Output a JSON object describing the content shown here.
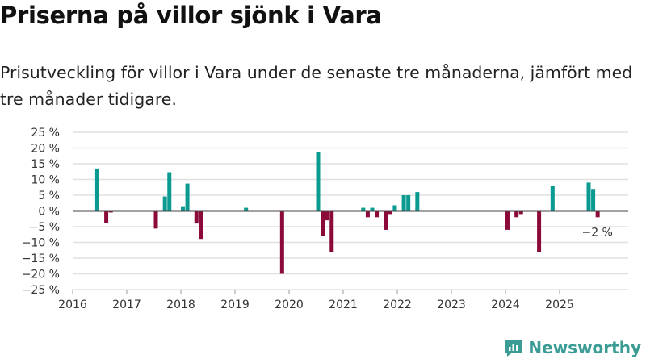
{
  "title": "Priserna på villor sjönk i Vara",
  "subtitle": "Prisutveckling för villor i Vara under de senaste tre månaderna, jämfört med tre månader tidigare.",
  "brand": "Newsworthy",
  "colors": {
    "positive": "#0a9a8f",
    "negative": "#8c0a3a",
    "grid": "#e0e0e0",
    "zero": "#444444"
  },
  "chart_data": {
    "type": "bar",
    "title": "Priserna på villor sjönk i Vara",
    "xlabel": "",
    "ylabel": "",
    "ylim": [
      -25,
      25
    ],
    "y_ticks": [
      25,
      20,
      15,
      10,
      5,
      0,
      -5,
      -10,
      -15,
      -20,
      -25
    ],
    "y_tick_labels": [
      "25 %",
      "20 %",
      "15 %",
      "10 %",
      "5 %",
      "0 %",
      "−5 %",
      "−10 %",
      "−15 %",
      "−20 %",
      "−25 %"
    ],
    "x_tick_labels": [
      "2016",
      "2017",
      "2018",
      "2019",
      "2020",
      "2021",
      "2022",
      "2023",
      "2024",
      "2025"
    ],
    "grid": true,
    "annotation": "−2 %",
    "points": [
      {
        "date": "2016-06",
        "value": 13.5
      },
      {
        "date": "2016-08",
        "value": -3.8
      },
      {
        "date": "2016-09",
        "value": -0.5
      },
      {
        "date": "2017-07",
        "value": -5.6
      },
      {
        "date": "2017-09",
        "value": 4.6
      },
      {
        "date": "2017-10",
        "value": 12.3
      },
      {
        "date": "2018-01",
        "value": 1.5
      },
      {
        "date": "2018-02",
        "value": 8.7
      },
      {
        "date": "2018-04",
        "value": -4.0
      },
      {
        "date": "2018-05",
        "value": -8.9
      },
      {
        "date": "2019-03",
        "value": 1.0
      },
      {
        "date": "2019-11",
        "value": -20.0
      },
      {
        "date": "2020-07",
        "value": 18.7
      },
      {
        "date": "2020-08",
        "value": -7.9
      },
      {
        "date": "2020-09",
        "value": -3.0
      },
      {
        "date": "2020-10",
        "value": -13.0
      },
      {
        "date": "2021-05",
        "value": 1.0
      },
      {
        "date": "2021-06",
        "value": -2.0
      },
      {
        "date": "2021-07",
        "value": 1.0
      },
      {
        "date": "2021-08",
        "value": -2.0
      },
      {
        "date": "2021-10",
        "value": -6.0
      },
      {
        "date": "2021-11",
        "value": -1.0
      },
      {
        "date": "2021-12",
        "value": 1.8
      },
      {
        "date": "2022-02",
        "value": 5.0
      },
      {
        "date": "2022-03",
        "value": 5.0
      },
      {
        "date": "2022-05",
        "value": 6.0
      },
      {
        "date": "2024-01",
        "value": -6.0
      },
      {
        "date": "2024-03",
        "value": -2.0
      },
      {
        "date": "2024-04",
        "value": -1.0
      },
      {
        "date": "2024-08",
        "value": -13.0
      },
      {
        "date": "2024-11",
        "value": 8.0
      },
      {
        "date": "2025-07",
        "value": 9.0
      },
      {
        "date": "2025-08",
        "value": 7.0
      },
      {
        "date": "2025-09",
        "value": -2.0
      }
    ]
  }
}
